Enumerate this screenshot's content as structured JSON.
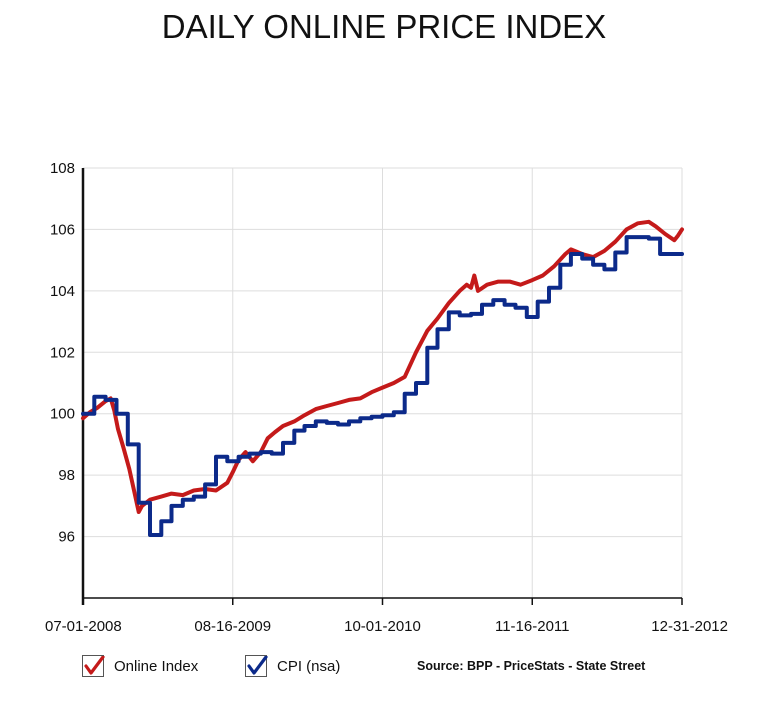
{
  "chart_data": {
    "type": "line",
    "title": "DAILY ONLINE PRICE INDEX",
    "xlabel": "",
    "ylabel": "",
    "x_ticks": [
      "07-01-2008",
      "08-16-2009",
      "10-01-2010",
      "11-16-2011",
      "12-31-2012"
    ],
    "xlim": [
      "2008-07-01",
      "2012-12-31"
    ],
    "y_ticks": [
      "108",
      "106",
      "104",
      "102",
      "100",
      "98",
      "96"
    ],
    "ylim": [
      94,
      108
    ],
    "grid": true,
    "legend_position": "bottom-left",
    "source": "Source: BPP - PriceStats - State Street",
    "series": [
      {
        "name": "Online Index",
        "color": "#c41a1a",
        "style": "line",
        "points": [
          [
            "2008-07-01",
            99.85
          ],
          [
            "2008-07-20",
            100.05
          ],
          [
            "2008-08-10",
            100.2
          ],
          [
            "2008-08-31",
            100.4
          ],
          [
            "2008-09-15",
            100.5
          ],
          [
            "2008-09-25",
            100.1
          ],
          [
            "2008-10-05",
            99.5
          ],
          [
            "2008-10-20",
            98.9
          ],
          [
            "2008-11-05",
            98.2
          ],
          [
            "2008-11-20",
            97.4
          ],
          [
            "2008-12-01",
            96.8
          ],
          [
            "2008-12-10",
            97.0
          ],
          [
            "2009-01-01",
            97.2
          ],
          [
            "2009-02-01",
            97.3
          ],
          [
            "2009-03-01",
            97.4
          ],
          [
            "2009-04-01",
            97.35
          ],
          [
            "2009-05-01",
            97.5
          ],
          [
            "2009-06-01",
            97.55
          ],
          [
            "2009-07-01",
            97.5
          ],
          [
            "2009-08-01",
            97.75
          ],
          [
            "2009-08-16",
            98.1
          ],
          [
            "2009-09-01",
            98.5
          ],
          [
            "2009-09-20",
            98.75
          ],
          [
            "2009-10-10",
            98.45
          ],
          [
            "2009-11-01",
            98.75
          ],
          [
            "2009-11-20",
            99.2
          ],
          [
            "2009-12-10",
            99.4
          ],
          [
            "2010-01-01",
            99.6
          ],
          [
            "2010-02-01",
            99.75
          ],
          [
            "2010-03-01",
            99.95
          ],
          [
            "2010-04-01",
            100.15
          ],
          [
            "2010-05-01",
            100.25
          ],
          [
            "2010-06-01",
            100.35
          ],
          [
            "2010-07-01",
            100.45
          ],
          [
            "2010-08-01",
            100.5
          ],
          [
            "2010-09-01",
            100.7
          ],
          [
            "2010-10-01",
            100.85
          ],
          [
            "2010-11-01",
            101.0
          ],
          [
            "2010-12-01",
            101.2
          ],
          [
            "2011-01-01",
            102.0
          ],
          [
            "2011-02-01",
            102.7
          ],
          [
            "2011-03-01",
            103.1
          ],
          [
            "2011-04-01",
            103.6
          ],
          [
            "2011-05-01",
            104.0
          ],
          [
            "2011-05-20",
            104.2
          ],
          [
            "2011-06-01",
            104.1
          ],
          [
            "2011-06-10",
            104.5
          ],
          [
            "2011-06-20",
            104.0
          ],
          [
            "2011-07-15",
            104.2
          ],
          [
            "2011-08-15",
            104.3
          ],
          [
            "2011-09-15",
            104.3
          ],
          [
            "2011-10-15",
            104.2
          ],
          [
            "2011-11-16",
            104.35
          ],
          [
            "2011-12-15",
            104.5
          ],
          [
            "2012-01-15",
            104.8
          ],
          [
            "2012-02-15",
            105.2
          ],
          [
            "2012-03-01",
            105.35
          ],
          [
            "2012-04-01",
            105.2
          ],
          [
            "2012-05-01",
            105.1
          ],
          [
            "2012-06-01",
            105.3
          ],
          [
            "2012-07-01",
            105.6
          ],
          [
            "2012-08-01",
            106.0
          ],
          [
            "2012-09-01",
            106.2
          ],
          [
            "2012-10-01",
            106.25
          ],
          [
            "2012-10-20",
            106.1
          ],
          [
            "2012-11-15",
            105.85
          ],
          [
            "2012-12-10",
            105.65
          ],
          [
            "2012-12-20",
            105.8
          ],
          [
            "2012-12-31",
            106.0
          ]
        ]
      },
      {
        "name": "CPI (nsa)",
        "color": "#0c2a8a",
        "style": "step",
        "points": [
          [
            "2008-07-01",
            100.0
          ],
          [
            "2008-08-01",
            100.55
          ],
          [
            "2008-09-01",
            100.45
          ],
          [
            "2008-10-01",
            100.0
          ],
          [
            "2008-11-01",
            99.0
          ],
          [
            "2008-12-01",
            97.1
          ],
          [
            "2009-01-01",
            96.05
          ],
          [
            "2009-02-01",
            96.5
          ],
          [
            "2009-03-01",
            97.0
          ],
          [
            "2009-04-01",
            97.2
          ],
          [
            "2009-05-01",
            97.3
          ],
          [
            "2009-06-01",
            97.7
          ],
          [
            "2009-07-01",
            98.6
          ],
          [
            "2009-08-01",
            98.45
          ],
          [
            "2009-09-01",
            98.6
          ],
          [
            "2009-10-01",
            98.7
          ],
          [
            "2009-11-01",
            98.75
          ],
          [
            "2009-12-01",
            98.7
          ],
          [
            "2010-01-01",
            99.05
          ],
          [
            "2010-02-01",
            99.45
          ],
          [
            "2010-03-01",
            99.6
          ],
          [
            "2010-04-01",
            99.75
          ],
          [
            "2010-05-01",
            99.7
          ],
          [
            "2010-06-01",
            99.65
          ],
          [
            "2010-07-01",
            99.75
          ],
          [
            "2010-08-01",
            99.85
          ],
          [
            "2010-09-01",
            99.9
          ],
          [
            "2010-10-01",
            99.95
          ],
          [
            "2010-11-01",
            100.05
          ],
          [
            "2010-12-01",
            100.65
          ],
          [
            "2011-01-01",
            101.0
          ],
          [
            "2011-02-01",
            102.15
          ],
          [
            "2011-03-01",
            102.75
          ],
          [
            "2011-04-01",
            103.3
          ],
          [
            "2011-05-01",
            103.2
          ],
          [
            "2011-06-01",
            103.25
          ],
          [
            "2011-07-01",
            103.55
          ],
          [
            "2011-08-01",
            103.7
          ],
          [
            "2011-09-01",
            103.55
          ],
          [
            "2011-10-01",
            103.45
          ],
          [
            "2011-11-01",
            103.15
          ],
          [
            "2011-12-01",
            103.65
          ],
          [
            "2012-01-01",
            104.1
          ],
          [
            "2012-02-01",
            104.85
          ],
          [
            "2012-03-01",
            105.2
          ],
          [
            "2012-04-01",
            105.05
          ],
          [
            "2012-05-01",
            104.85
          ],
          [
            "2012-06-01",
            104.7
          ],
          [
            "2012-07-01",
            105.25
          ],
          [
            "2012-08-01",
            105.75
          ],
          [
            "2012-09-01",
            105.75
          ],
          [
            "2012-10-01",
            105.7
          ],
          [
            "2012-11-01",
            105.2
          ],
          [
            "2012-12-31",
            105.2
          ]
        ]
      }
    ]
  }
}
